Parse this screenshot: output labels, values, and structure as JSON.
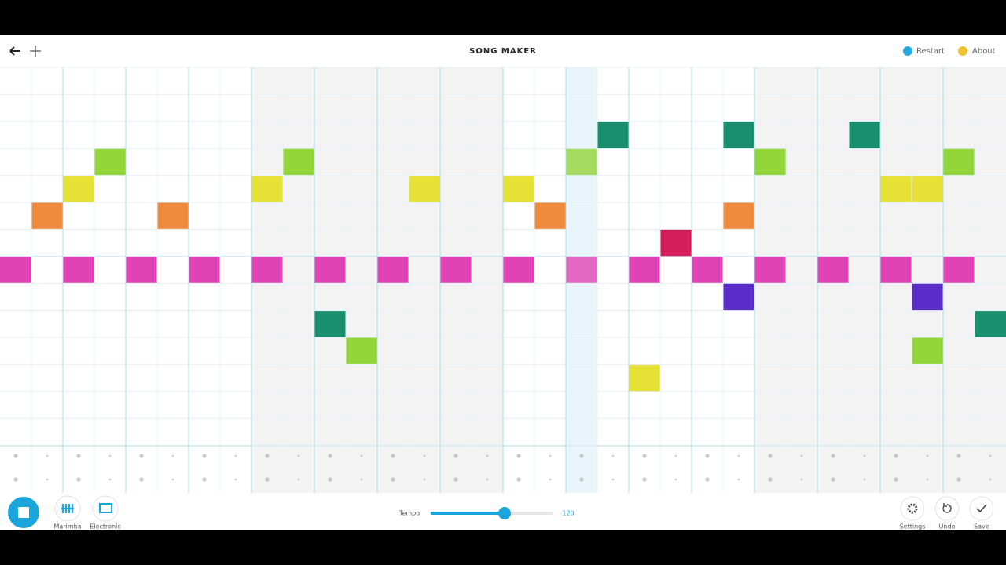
{
  "header": {
    "title": "SONG MAKER",
    "restart": "Restart",
    "about": "About"
  },
  "toolbar": {
    "instruments": [
      "Marimba",
      "Electronic"
    ],
    "tempo_label": "Tempo",
    "tempo": 120,
    "actions": [
      "Settings",
      "Undo",
      "Save"
    ]
  }
}
